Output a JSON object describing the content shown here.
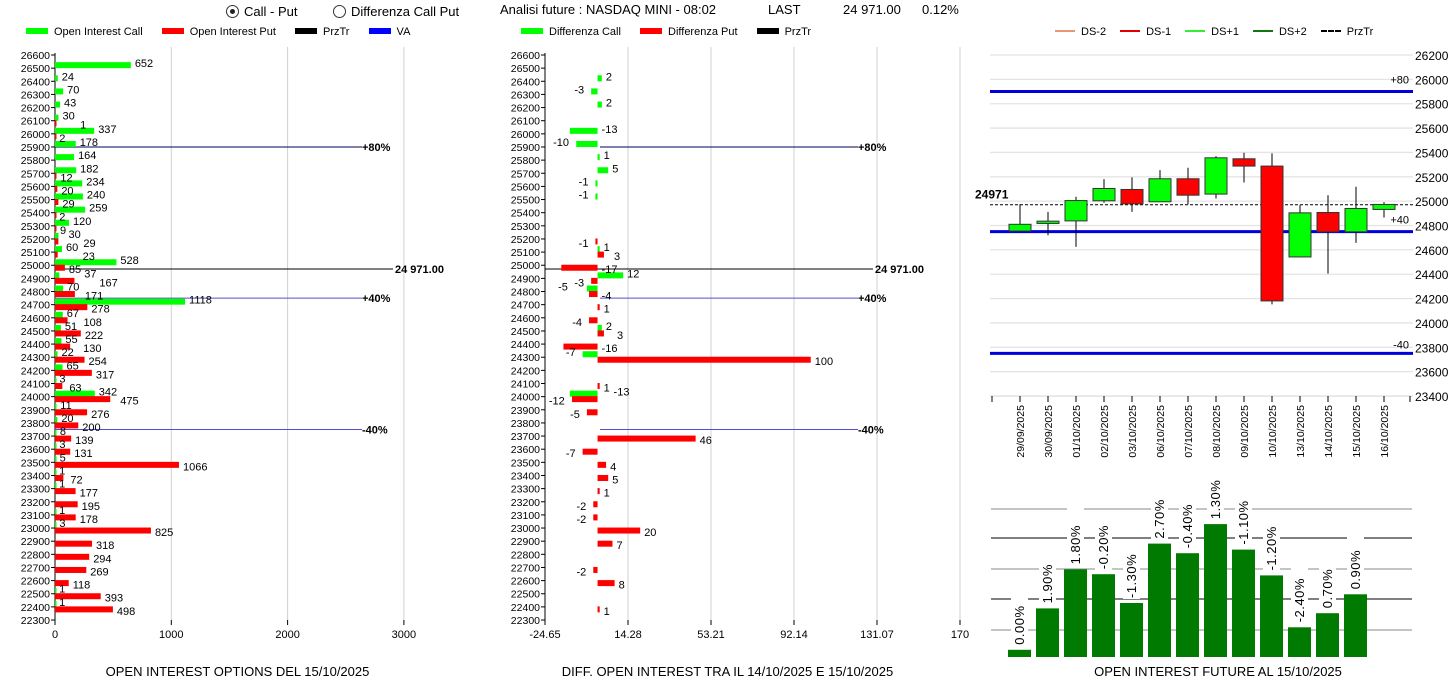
{
  "header": {
    "radio_call_put": "Call - Put",
    "radio_diff": "Differenza Call Put",
    "selected": "Call - Put",
    "title": "Analisi future : NASDAQ MINI - 08:02",
    "last_label": "LAST",
    "last_value": "24 971.00",
    "last_change": "0.12%"
  },
  "colors": {
    "call": "#00ff00",
    "put": "#ff0000",
    "przTr": "#000000",
    "va": "#0000ff",
    "future_bar": "#007a00"
  },
  "chart_data": [
    {
      "type": "bar",
      "orientation": "horizontal",
      "title": "OPEN INTEREST OPTIONS DEL 15/10/2025",
      "legend": [
        "Open Interest Call",
        "Open Interest Put",
        "PrzTr",
        "VA"
      ],
      "xlim": [
        0,
        3000
      ],
      "xticks": [
        "0",
        "1000",
        "2000",
        "3000"
      ],
      "categories": [
        26600,
        26500,
        26400,
        26300,
        26200,
        26100,
        26000,
        25900,
        25800,
        25700,
        25600,
        25500,
        25400,
        25300,
        25200,
        25100,
        25000,
        24900,
        24800,
        24700,
        24600,
        24500,
        24400,
        24300,
        24200,
        24100,
        24000,
        23900,
        23800,
        23700,
        23600,
        23500,
        23400,
        23300,
        23200,
        23100,
        23000,
        22900,
        22800,
        22700,
        22600,
        22500,
        22400,
        22300
      ],
      "series": [
        {
          "name": "Open Interest Call",
          "values": [
            null,
            652,
            24,
            70,
            43,
            30,
            337,
            178,
            164,
            182,
            234,
            240,
            259,
            120,
            30,
            60,
            528,
            37,
            70,
            1118,
            67,
            51,
            55,
            22,
            65,
            3,
            342,
            11,
            20,
            8,
            3,
            5,
            1,
            1,
            null,
            1,
            3,
            null,
            null,
            null,
            null,
            1,
            1,
            null
          ]
        },
        {
          "name": "Open Interest Put",
          "values": [
            null,
            null,
            null,
            null,
            null,
            1,
            2,
            null,
            null,
            12,
            20,
            29,
            2,
            9,
            29,
            23,
            85,
            167,
            171,
            278,
            108,
            222,
            130,
            254,
            317,
            63,
            475,
            276,
            200,
            139,
            131,
            1066,
            72,
            177,
            195,
            178,
            825,
            318,
            294,
            269,
            118,
            393,
            498,
            null
          ]
        }
      ],
      "przTr": {
        "value": 24971,
        "label": "24 971.00"
      },
      "va_lines": [
        {
          "label": "+80%",
          "strike": 25900
        },
        {
          "label": "+40%",
          "strike": 24750
        },
        {
          "label": "-40%",
          "strike": 23750
        }
      ]
    },
    {
      "type": "bar",
      "orientation": "horizontal",
      "title": "DIFF. OPEN INTEREST TRA IL 14/10/2025 E 15/10/2025",
      "legend": [
        "Differenza Call",
        "Differenza Put",
        "PrzTr"
      ],
      "xlim": [
        -24.65,
        170
      ],
      "xticks": [
        "-24.65",
        "14.28",
        "53.21",
        "92.14",
        "131.07",
        "170"
      ],
      "categories": [
        26600,
        26500,
        26400,
        26300,
        26200,
        26100,
        26000,
        25900,
        25800,
        25700,
        25600,
        25500,
        25400,
        25300,
        25200,
        25100,
        25000,
        24900,
        24800,
        24700,
        24600,
        24500,
        24400,
        24300,
        24200,
        24100,
        24000,
        23900,
        23800,
        23700,
        23600,
        23500,
        23400,
        23300,
        23200,
        23100,
        23000,
        22900,
        22800,
        22700,
        22600,
        22500,
        22400,
        22300
      ],
      "series": [
        {
          "name": "Differenza Call",
          "values": [
            null,
            null,
            2,
            -3,
            2,
            null,
            -13,
            -10,
            1,
            5,
            -1,
            -1,
            null,
            null,
            null,
            1,
            null,
            12,
            -5,
            null,
            null,
            2,
            null,
            -7,
            null,
            null,
            -13,
            null,
            null,
            null,
            null,
            null,
            null,
            null,
            null,
            null,
            null,
            null,
            null,
            null,
            null,
            null,
            null,
            null
          ]
        },
        {
          "name": "Differenza Put",
          "values": [
            null,
            null,
            null,
            null,
            null,
            null,
            null,
            null,
            null,
            null,
            null,
            null,
            null,
            null,
            -1,
            3,
            -17,
            -3,
            -4,
            1,
            -4,
            3,
            -16,
            100,
            null,
            1,
            -12,
            -5,
            null,
            46,
            -7,
            4,
            5,
            1,
            -2,
            -2,
            20,
            7,
            null,
            -2,
            8,
            null,
            1,
            null
          ]
        }
      ],
      "przTr": {
        "value": 24971,
        "label": "24 971.00"
      },
      "va_lines": [
        {
          "label": "+80%",
          "strike": 25900
        },
        {
          "label": "+40%",
          "strike": 24750
        },
        {
          "label": "-40%",
          "strike": 23750
        }
      ]
    },
    {
      "type": "candlestick",
      "legend": [
        {
          "name": "DS-2",
          "color": "#e8967a",
          "style": "solid"
        },
        {
          "name": "DS-1",
          "color": "#e00000",
          "style": "solid"
        },
        {
          "name": "DS+1",
          "color": "#33ee33",
          "style": "solid"
        },
        {
          "name": "DS+2",
          "color": "#117711",
          "style": "solid"
        },
        {
          "name": "PrzTr",
          "color": "#000000",
          "style": "dashed"
        }
      ],
      "ylim": [
        23400,
        26200
      ],
      "yticks": [
        26200,
        26000,
        25800,
        25600,
        25400,
        25200,
        25000,
        24800,
        24600,
        24400,
        24200,
        24000,
        23800,
        23600,
        23400
      ],
      "x": [
        "29/09/2025",
        "30/09/2025",
        "01/10/2025",
        "02/10/2025",
        "03/10/2025",
        "06/10/2025",
        "07/10/2025",
        "08/10/2025",
        "09/10/2025",
        "10/10/2025",
        "13/10/2025",
        "14/10/2025",
        "15/10/2025",
        "16/10/2025"
      ],
      "ohlc": [
        [
          24755,
          24975,
          24755,
          24810
        ],
        [
          24817,
          24912,
          24720,
          24836
        ],
        [
          24838,
          25036,
          24625,
          25005
        ],
        [
          25003,
          25181,
          24986,
          25104
        ],
        [
          25096,
          25195,
          24912,
          24978
        ],
        [
          24995,
          25255,
          24995,
          25184
        ],
        [
          25184,
          25274,
          24975,
          25049
        ],
        [
          25058,
          25370,
          25022,
          25356
        ],
        [
          25348,
          25397,
          25153,
          25288
        ],
        [
          25288,
          25392,
          24153,
          24181
        ],
        [
          24542,
          24967,
          24542,
          24904
        ],
        [
          24907,
          25049,
          24405,
          24748
        ],
        [
          24748,
          25118,
          24658,
          24940
        ],
        [
          24932,
          24992,
          24866,
          24973
        ]
      ],
      "przTr": {
        "value": 24971,
        "label": "24971"
      },
      "levels": [
        {
          "label": "+80",
          "value": 25900
        },
        {
          "label": "+40",
          "value": 24750
        },
        {
          "label": "-40",
          "value": 23750
        }
      ]
    },
    {
      "type": "bar",
      "title": "OPEN INTEREST FUTURE AL 15/10/2025",
      "values_relative": [
        0.24,
        1.62,
        2.92,
        2.76,
        1.8,
        3.78,
        3.46,
        4.43,
        3.58,
        2.72,
        0.99,
        1.46,
        2.09
      ],
      "labels": [
        "0.00%",
        "1.90%",
        "1.80%",
        "-0.20%",
        "-1.30%",
        "2.70%",
        "-0.40%",
        "1.30%",
        "-1.10%",
        "-1.20%",
        "-2.40%",
        "0.70%",
        "0.90%"
      ]
    }
  ]
}
